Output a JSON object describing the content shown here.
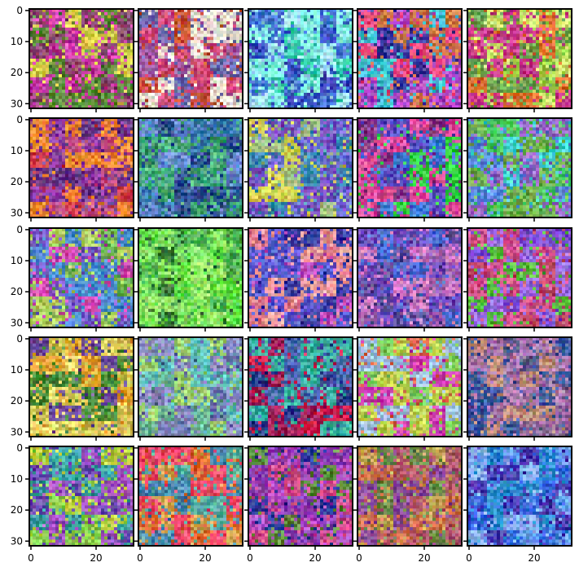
{
  "figure": {
    "rows": 5,
    "cols": 5,
    "image_resolution": 32,
    "content": "grid of 25 blurry, pixelated 32x32 RGB images resembling GAN generated samples (noisy colour blobs)",
    "y_tick_labels": [
      "0",
      "10",
      "20",
      "30"
    ],
    "x_tick_labels": [
      "0",
      "20"
    ],
    "frame_color": "#000000"
  },
  "panels": [
    {
      "palette": [
        "#c0329a",
        "#8a4a6e",
        "#d8d04a",
        "#5a8a3a",
        "#e04ab8"
      ]
    },
    {
      "palette": [
        "#d04a7a",
        "#6a6ab0",
        "#e8e0d0",
        "#c85030",
        "#a05aa0"
      ]
    },
    {
      "palette": [
        "#30c8a8",
        "#4a7ad8",
        "#80f0e0",
        "#3a50c0",
        "#a0e0f0"
      ]
    },
    {
      "palette": [
        "#b04ac8",
        "#3a3a9a",
        "#f04a80",
        "#d07a4a",
        "#40c0d0"
      ]
    },
    {
      "palette": [
        "#a0d04a",
        "#c83a8a",
        "#6aa050",
        "#e07030",
        "#d0e870"
      ]
    },
    {
      "palette": [
        "#d0404a",
        "#8a3aa0",
        "#f08a30",
        "#c05080",
        "#6a3a8a"
      ]
    },
    {
      "palette": [
        "#3a7ab0",
        "#4ab080",
        "#2a4a8a",
        "#6a8ad0",
        "#3a9a6a"
      ]
    },
    {
      "palette": [
        "#6a6ad0",
        "#a0c080",
        "#3a8ab0",
        "#d0d050",
        "#7a50c0"
      ]
    },
    {
      "palette": [
        "#5a4ac0",
        "#e04a9a",
        "#30d040",
        "#8a3a8a",
        "#3a7ad0"
      ]
    },
    {
      "palette": [
        "#5a8ae0",
        "#4ac860",
        "#9a6ac8",
        "#40d0d0",
        "#70b050"
      ]
    },
    {
      "palette": [
        "#6ab050",
        "#d04ab0",
        "#4a8ad0",
        "#b0d060",
        "#7a5ac8"
      ]
    },
    {
      "palette": [
        "#60e040",
        "#3a7a3a",
        "#a0f070",
        "#4ab050",
        "#80e060"
      ]
    },
    {
      "palette": [
        "#e07a8a",
        "#5a5ad0",
        "#c050c0",
        "#f0a0a0",
        "#3a3aa0"
      ]
    },
    {
      "palette": [
        "#6a4ac0",
        "#a060b0",
        "#4a6ad0",
        "#d07ac0",
        "#5a4a9a"
      ]
    },
    {
      "palette": [
        "#7a4ad0",
        "#d0508a",
        "#5ac040",
        "#9a6ae0",
        "#c04a6a"
      ]
    },
    {
      "palette": [
        "#d0c050",
        "#6a4a9a",
        "#e0a030",
        "#4a8a3a",
        "#f0e070"
      ]
    },
    {
      "palette": [
        "#6ab090",
        "#8a8ac0",
        "#60c0c0",
        "#a0d070",
        "#5a6aa0"
      ]
    },
    {
      "palette": [
        "#d01a4a",
        "#2a3a8a",
        "#3ab0a0",
        "#a0205a",
        "#4a6ab0"
      ]
    },
    {
      "palette": [
        "#c0d050",
        "#d040b0",
        "#a0c0e0",
        "#e06a4a",
        "#80d060"
      ]
    },
    {
      "palette": [
        "#9a6aa0",
        "#5a5a8a",
        "#c08a7a",
        "#3a5aa0",
        "#b07ab0"
      ]
    },
    {
      "palette": [
        "#8ad050",
        "#6a4ab0",
        "#3aa0a0",
        "#c0d040",
        "#a050c0"
      ]
    },
    {
      "palette": [
        "#e06a30",
        "#4a8ab0",
        "#d0a050",
        "#f04a6a",
        "#5ab0a0"
      ]
    },
    {
      "palette": [
        "#8a3ab0",
        "#2a3a9a",
        "#d04a8a",
        "#5a8a3a",
        "#b04ac0"
      ]
    },
    {
      "palette": [
        "#b05a6a",
        "#6a8a4a",
        "#d0704a",
        "#8a4a9a",
        "#c0a050"
      ]
    },
    {
      "palette": [
        "#3a6ae0",
        "#6aa0f0",
        "#4a3ab0",
        "#2a8ad0",
        "#8ab0f0"
      ]
    }
  ]
}
